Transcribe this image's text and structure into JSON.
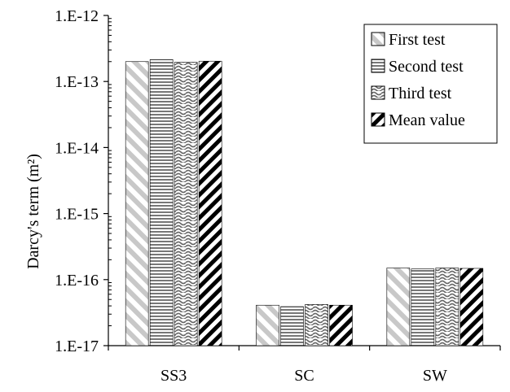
{
  "chart_data": {
    "type": "bar",
    "ylabel": "Darcy's term (m²)",
    "yscale": "log",
    "ylim": [
      1e-17,
      1e-12
    ],
    "yticks": [
      1e-17,
      1e-16,
      1e-15,
      1e-14,
      1e-13,
      1e-12
    ],
    "ytick_labels": [
      "1.E-17",
      "1.E-16",
      "1.E-15",
      "1.E-14",
      "1.E-13",
      "1.E-12"
    ],
    "categories": [
      "SS3",
      "SC",
      "SW"
    ],
    "legend_position": "top-right",
    "grid": false,
    "series": [
      {
        "name": "First test",
        "pattern": "diagonal-light",
        "values": [
          2e-13,
          4.1e-17,
          1.5e-16
        ]
      },
      {
        "name": "Second test",
        "pattern": "horizontal",
        "values": [
          2.15e-13,
          3.9e-17,
          1.45e-16
        ]
      },
      {
        "name": "Third test",
        "pattern": "wave",
        "values": [
          1.95e-13,
          4.2e-17,
          1.5e-16
        ]
      },
      {
        "name": "Mean value",
        "pattern": "diagonal-bold",
        "values": [
          2.03e-13,
          4.1e-17,
          1.48e-16
        ]
      }
    ]
  }
}
